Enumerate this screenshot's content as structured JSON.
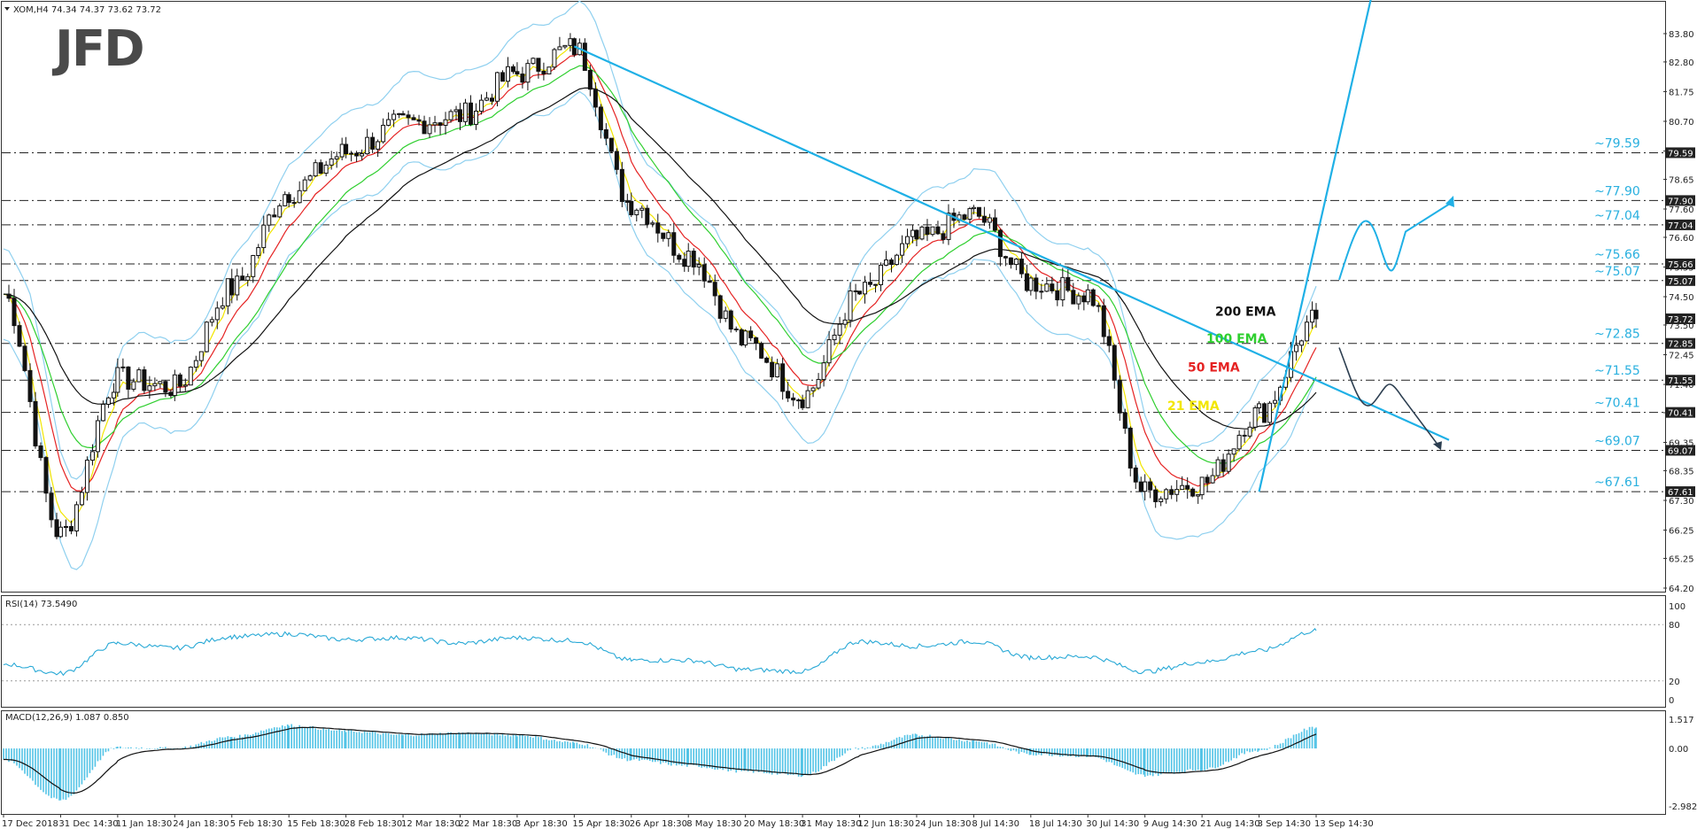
{
  "header": {
    "symbol_line": "XOM,H4  74.34 74.37 73.62 73.72",
    "logo": "JFD"
  },
  "colors": {
    "candles": "#111111",
    "bollinger": "#8fd0ef",
    "ema21": "#f2e600",
    "ema50": "#e52323",
    "ema100": "#2fcf2f",
    "ema200": "#111111",
    "trendline": "#1fb0e6",
    "scenario_up": "#1fb0e6",
    "scenario_down": "#2c3e50",
    "levels": "#222222",
    "level_labels": "#2ab0df",
    "rsi": "#29a9d6",
    "macd_hist": "#52c3e6",
    "macd_signal": "#111111"
  },
  "chart_data": [
    {
      "type": "candlestick",
      "name": "XOM,H4",
      "x_ticks": [
        "17 Dec 2018",
        "31 Dec 14:30",
        "11 Jan 18:30",
        "24 Jan 18:30",
        "5 Feb 18:30",
        "15 Feb 18:30",
        "28 Feb 18:30",
        "12 Mar 18:30",
        "22 Mar 18:30",
        "3 Apr 18:30",
        "15 Apr 18:30",
        "26 Apr 18:30",
        "8 May 18:30",
        "20 May 18:30",
        "31 May 18:30",
        "12 Jun 18:30",
        "24 Jun 18:30",
        "8 Jul 14:30",
        "18 Jul 14:30",
        "30 Jul 14:30",
        "9 Aug 14:30",
        "21 Aug 14:30",
        "3 Sep 14:30",
        "13 Sep 14:30"
      ],
      "y_ticks": [
        83.8,
        82.8,
        81.75,
        80.7,
        79.65,
        78.65,
        77.6,
        76.6,
        75.55,
        74.5,
        73.5,
        72.45,
        71.4,
        70.4,
        69.35,
        68.35,
        67.3,
        66.25,
        65.25,
        64.2
      ],
      "ylim": [
        64.2,
        84.3
      ],
      "price_key_points": [
        {
          "x": "17 Dec 2018",
          "y": 74.6
        },
        {
          "x": "31 Dec 14:30",
          "y": 66.1
        },
        {
          "x": "11 Jan 18:30",
          "y": 71.6
        },
        {
          "x": "24 Jan 18:30",
          "y": 71.3
        },
        {
          "x": "5 Feb 18:30",
          "y": 74.8
        },
        {
          "x": "15 Feb 18:30",
          "y": 78.2
        },
        {
          "x": "28 Feb 18:30",
          "y": 79.6
        },
        {
          "x": "12 Mar 18:30",
          "y": 80.6
        },
        {
          "x": "22 Mar 18:30",
          "y": 80.9
        },
        {
          "x": "3 Apr 18:30",
          "y": 82.4
        },
        {
          "x": "15 Apr 18:30",
          "y": 83.3
        },
        {
          "x": "26 Apr 18:30",
          "y": 77.8
        },
        {
          "x": "8 May 18:30",
          "y": 76.0
        },
        {
          "x": "20 May 18:30",
          "y": 72.9
        },
        {
          "x": "31 May 18:30",
          "y": 71.0
        },
        {
          "x": "12 Jun 18:30",
          "y": 74.6
        },
        {
          "x": "24 Jun 18:30",
          "y": 76.5
        },
        {
          "x": "8 Jul 14:30",
          "y": 77.4
        },
        {
          "x": "18 Jul 14:30",
          "y": 75.0
        },
        {
          "x": "30 Jul 14:30",
          "y": 74.6
        },
        {
          "x": "9 Aug 14:30",
          "y": 67.6
        },
        {
          "x": "21 Aug 14:30",
          "y": 67.9
        },
        {
          "x": "3 Sep 14:30",
          "y": 70.4
        },
        {
          "x": "13 Sep 14:30",
          "y": 73.72
        }
      ],
      "price_tags": [
        79.59,
        77.9,
        77.04,
        75.66,
        75.07,
        73.72,
        72.85,
        71.55,
        70.41,
        69.07,
        67.61
      ],
      "horizontal_levels": [
        {
          "value": 79.59,
          "label": "~79.59"
        },
        {
          "value": 77.9,
          "label": "~77.90"
        },
        {
          "value": 77.04,
          "label": "~77.04"
        },
        {
          "value": 75.66,
          "label": "~75.66"
        },
        {
          "value": 75.07,
          "label": "~75.07"
        },
        {
          "value": 72.85,
          "label": "~72.85"
        },
        {
          "value": 71.55,
          "label": "~71.55"
        },
        {
          "value": 70.41,
          "label": "~70.41"
        },
        {
          "value": 69.07,
          "label": "~69.07"
        },
        {
          "value": 67.61,
          "label": "~67.61"
        }
      ],
      "trendlines": [
        {
          "from": {
            "x": "15 Apr 18:30",
            "y": 83.35
          },
          "to": {
            "x": "13 Sep 14:30",
            "y": 71.55
          },
          "note": "downtrend line"
        },
        {
          "from": {
            "x": "3 Sep 14:30",
            "y": 67.61
          },
          "to": {
            "x": "13 Sep 14:30",
            "y": 76.5
          },
          "note": "uptrend line"
        }
      ],
      "ema_labels": [
        {
          "label": "200 EMA",
          "color": "#111111"
        },
        {
          "label": "100 EMA",
          "color": "#2fcf2f"
        },
        {
          "label": "50 EMA",
          "color": "#e52323"
        },
        {
          "label": "21 EMA",
          "color": "#f2e600"
        }
      ],
      "grid": false
    },
    {
      "type": "line",
      "name": "RSI(14) 73.5490",
      "label": "RSI(14) 73.5490",
      "y_ticks": [
        100,
        80,
        20,
        0
      ],
      "ylim": [
        0,
        100
      ],
      "levels": [
        80,
        20
      ],
      "key_points": [
        {
          "x": "17 Dec 2018",
          "y": 38
        },
        {
          "x": "31 Dec 14:30",
          "y": 28
        },
        {
          "x": "11 Jan 18:30",
          "y": 60
        },
        {
          "x": "24 Jan 18:30",
          "y": 55
        },
        {
          "x": "5 Feb 18:30",
          "y": 67
        },
        {
          "x": "15 Feb 18:30",
          "y": 70
        },
        {
          "x": "28 Feb 18:30",
          "y": 64
        },
        {
          "x": "12 Mar 18:30",
          "y": 66
        },
        {
          "x": "22 Mar 18:30",
          "y": 60
        },
        {
          "x": "3 Apr 18:30",
          "y": 66
        },
        {
          "x": "15 Apr 18:30",
          "y": 63
        },
        {
          "x": "26 Apr 18:30",
          "y": 42
        },
        {
          "x": "8 May 18:30",
          "y": 42
        },
        {
          "x": "20 May 18:30",
          "y": 32
        },
        {
          "x": "31 May 18:30",
          "y": 30
        },
        {
          "x": "12 Jun 18:30",
          "y": 62
        },
        {
          "x": "24 Jun 18:30",
          "y": 57
        },
        {
          "x": "8 Jul 14:30",
          "y": 62
        },
        {
          "x": "18 Jul 14:30",
          "y": 45
        },
        {
          "x": "30 Jul 14:30",
          "y": 46
        },
        {
          "x": "9 Aug 14:30",
          "y": 30
        },
        {
          "x": "21 Aug 14:30",
          "y": 40
        },
        {
          "x": "3 Sep 14:30",
          "y": 52
        },
        {
          "x": "13 Sep 14:30",
          "y": 73.55
        }
      ]
    },
    {
      "type": "bar",
      "name": "MACD(12,26,9) 1.087 0.850",
      "label": "MACD(12,26,9) 1.087 0.850",
      "y_ticks": [
        1.517,
        0.0,
        -2.982
      ],
      "ylim": [
        -2.982,
        1.517
      ],
      "key_points": [
        {
          "x": "17 Dec 2018",
          "y": -0.6
        },
        {
          "x": "31 Dec 14:30",
          "y": -2.7
        },
        {
          "x": "11 Jan 18:30",
          "y": 0.05
        },
        {
          "x": "24 Jan 18:30",
          "y": 0.0
        },
        {
          "x": "5 Feb 18:30",
          "y": 0.6
        },
        {
          "x": "15 Feb 18:30",
          "y": 1.2
        },
        {
          "x": "28 Feb 18:30",
          "y": 0.9
        },
        {
          "x": "12 Mar 18:30",
          "y": 0.7
        },
        {
          "x": "22 Mar 18:30",
          "y": 0.8
        },
        {
          "x": "3 Apr 18:30",
          "y": 0.7
        },
        {
          "x": "15 Apr 18:30",
          "y": 0.3
        },
        {
          "x": "26 Apr 18:30",
          "y": -0.6
        },
        {
          "x": "8 May 18:30",
          "y": -0.9
        },
        {
          "x": "20 May 18:30",
          "y": -1.2
        },
        {
          "x": "31 May 18:30",
          "y": -1.4
        },
        {
          "x": "12 Jun 18:30",
          "y": 0.0
        },
        {
          "x": "24 Jun 18:30",
          "y": 0.7
        },
        {
          "x": "8 Jul 14:30",
          "y": 0.4
        },
        {
          "x": "18 Jul 14:30",
          "y": -0.3
        },
        {
          "x": "30 Jul 14:30",
          "y": -0.4
        },
        {
          "x": "9 Aug 14:30",
          "y": -1.4
        },
        {
          "x": "21 Aug 14:30",
          "y": -1.1
        },
        {
          "x": "3 Sep 14:30",
          "y": -0.1
        },
        {
          "x": "13 Sep 14:30",
          "y": 1.087
        }
      ]
    }
  ]
}
